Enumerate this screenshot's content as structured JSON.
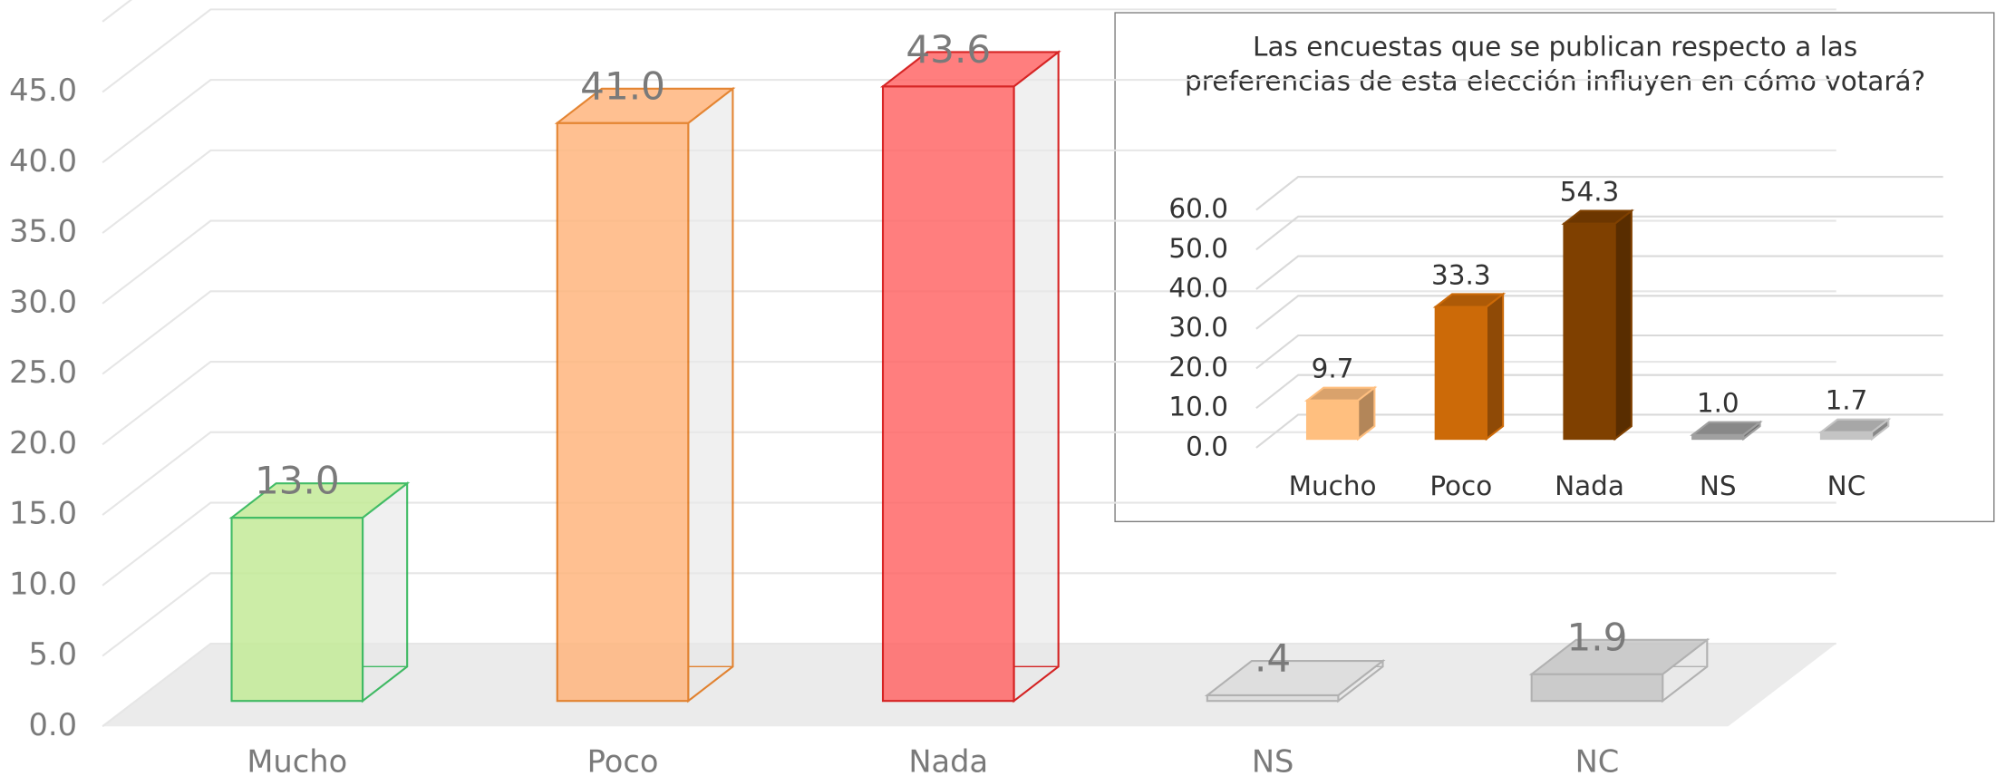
{
  "chart_data": [
    {
      "type": "bar3d",
      "categories": [
        "Mucho",
        "Poco",
        "Nada",
        "NS",
        "NC"
      ],
      "values": [
        13.0,
        41.0,
        43.6,
        0.4,
        1.9
      ],
      "value_labels": [
        "13.0",
        "41.0",
        "43.6",
        ".4",
        "1.9"
      ],
      "colors": [
        "#c4eb98",
        "#ffb67e",
        "#ff6868",
        "#dcdcdc",
        "#c6c6c6"
      ],
      "edge_colors": [
        "#22b14c",
        "#e07010",
        "#d00000",
        "#a8a8a8",
        "#a8a8a8"
      ],
      "ylim": [
        0,
        50
      ],
      "yticks": [
        {
          "value": 0,
          "label": "0.0"
        },
        {
          "value": 5,
          "label": "5.0"
        },
        {
          "value": 10,
          "label": "10.0"
        },
        {
          "value": 15,
          "label": "15.0"
        },
        {
          "value": 20,
          "label": "20.0"
        },
        {
          "value": 25,
          "label": "25.0"
        },
        {
          "value": 30,
          "label": "30.0"
        },
        {
          "value": 35,
          "label": "35.0"
        },
        {
          "value": 40,
          "label": "40.0"
        },
        {
          "value": 45,
          "label": "45.0"
        }
      ],
      "grid": true
    },
    {
      "type": "bar3d",
      "title": "Las encuestas que se publican respecto a las preferencias de esta elección influyen en cómo votará?",
      "categories": [
        "Mucho",
        "Poco",
        "Nada",
        "NS",
        "NC"
      ],
      "values": [
        9.7,
        33.3,
        54.3,
        1.0,
        1.7
      ],
      "value_labels": [
        "9.7",
        "33.3",
        "54.3",
        "1.0",
        "1.7"
      ],
      "colors": [
        "#ffbf7f",
        "#cc6a08",
        "#7f4000",
        "#a0a0a0",
        "#c4c4c4"
      ],
      "edge_colors": [
        "#ffbf7f",
        "#cc6a08",
        "#7f4000",
        "#a0a0a0",
        "#c4c4c4"
      ],
      "ylim": [
        0,
        60
      ],
      "yticks": [
        {
          "value": 0,
          "label": "0.0"
        },
        {
          "value": 10,
          "label": "10.0"
        },
        {
          "value": 20,
          "label": "20.0"
        },
        {
          "value": 30,
          "label": "30.0"
        },
        {
          "value": 40,
          "label": "40.0"
        },
        {
          "value": 50,
          "label": "50.0"
        },
        {
          "value": 60,
          "label": "60.0"
        }
      ],
      "grid": true
    }
  ]
}
